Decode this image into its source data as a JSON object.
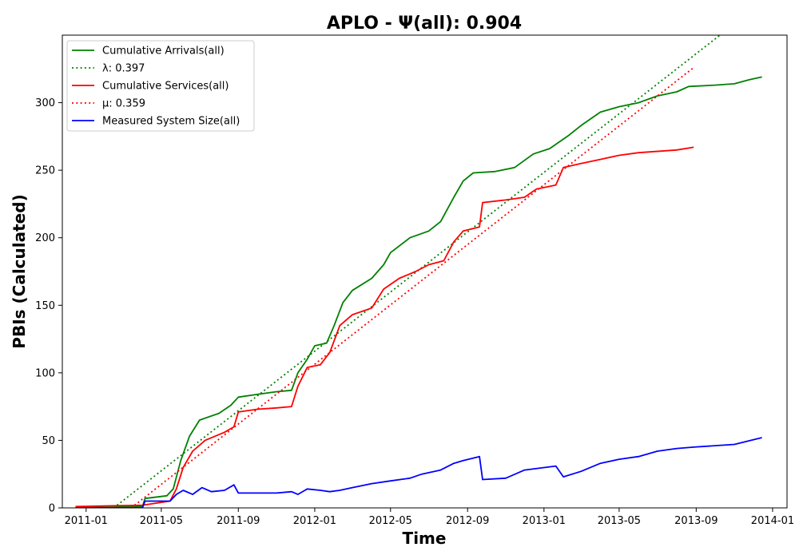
{
  "chart_data": {
    "type": "line",
    "title": "APLO -  Ψ(all): 0.904",
    "xlabel": "Time",
    "ylabel": "PBIs (Calculated)",
    "x_axis_type": "date",
    "xlim": [
      "2010-11-24",
      "2014-01-24"
    ],
    "ylim": [
      0,
      350
    ],
    "x_ticks": [
      "2011-01",
      "2011-05",
      "2011-09",
      "2012-01",
      "2012-05",
      "2012-09",
      "2013-01",
      "2013-05",
      "2013-09",
      "2014-01"
    ],
    "x_tick_dates": [
      "2011-01-01",
      "2011-05-01",
      "2011-09-01",
      "2012-01-01",
      "2012-05-01",
      "2012-09-01",
      "2013-01-01",
      "2013-05-01",
      "2013-09-01",
      "2014-01-01"
    ],
    "y_ticks": [
      0,
      50,
      100,
      150,
      200,
      250,
      300
    ],
    "grid": false,
    "legend_position": "top-left",
    "series": [
      {
        "name": "Cumulative Arrivals(all)",
        "color": "#008000",
        "style": "solid",
        "points": [
          [
            "2010-12-15",
            0
          ],
          [
            "2011-04-01",
            1
          ],
          [
            "2011-04-05",
            7
          ],
          [
            "2011-05-10",
            9
          ],
          [
            "2011-05-20",
            14
          ],
          [
            "2011-06-01",
            35
          ],
          [
            "2011-06-15",
            53
          ],
          [
            "2011-07-01",
            65
          ],
          [
            "2011-08-01",
            70
          ],
          [
            "2011-08-20",
            76
          ],
          [
            "2011-09-01",
            82
          ],
          [
            "2011-10-01",
            84
          ],
          [
            "2011-11-01",
            86
          ],
          [
            "2011-11-25",
            87
          ],
          [
            "2011-12-05",
            100
          ],
          [
            "2011-12-20",
            110
          ],
          [
            "2012-01-01",
            120
          ],
          [
            "2012-01-20",
            122
          ],
          [
            "2012-02-01",
            135
          ],
          [
            "2012-02-15",
            152
          ],
          [
            "2012-03-01",
            161
          ],
          [
            "2012-04-01",
            170
          ],
          [
            "2012-04-20",
            180
          ],
          [
            "2012-05-01",
            189
          ],
          [
            "2012-06-01",
            200
          ],
          [
            "2012-07-01",
            205
          ],
          [
            "2012-07-20",
            212
          ],
          [
            "2012-08-10",
            230
          ],
          [
            "2012-08-25",
            242
          ],
          [
            "2012-09-10",
            248
          ],
          [
            "2012-10-15",
            249
          ],
          [
            "2012-11-15",
            252
          ],
          [
            "2012-12-15",
            262
          ],
          [
            "2013-01-10",
            266
          ],
          [
            "2013-02-10",
            276
          ],
          [
            "2013-03-01",
            283
          ],
          [
            "2013-04-01",
            293
          ],
          [
            "2013-05-01",
            297
          ],
          [
            "2013-06-01",
            300
          ],
          [
            "2013-07-01",
            305
          ],
          [
            "2013-08-01",
            308
          ],
          [
            "2013-08-20",
            312
          ],
          [
            "2013-10-01",
            313
          ],
          [
            "2013-11-01",
            314
          ],
          [
            "2013-11-25",
            317
          ],
          [
            "2013-12-15",
            319
          ]
        ]
      },
      {
        "name": "λ: 0.397",
        "color": "#008000",
        "style": "dotted",
        "points": [
          [
            "2011-02-14",
            0
          ],
          [
            "2013-10-09",
            350
          ]
        ]
      },
      {
        "name": "Cumulative Services(all)",
        "color": "#ff0000",
        "style": "solid",
        "points": [
          [
            "2010-12-15",
            1
          ],
          [
            "2011-04-01",
            2
          ],
          [
            "2011-05-15",
            5
          ],
          [
            "2011-05-25",
            14
          ],
          [
            "2011-06-05",
            30
          ],
          [
            "2011-06-20",
            42
          ],
          [
            "2011-07-10",
            50
          ],
          [
            "2011-08-10",
            56
          ],
          [
            "2011-08-25",
            60
          ],
          [
            "2011-09-01",
            71
          ],
          [
            "2011-10-01",
            73
          ],
          [
            "2011-11-01",
            74
          ],
          [
            "2011-11-25",
            75
          ],
          [
            "2011-12-05",
            90
          ],
          [
            "2011-12-20",
            104
          ],
          [
            "2012-01-10",
            106
          ],
          [
            "2012-01-25",
            115
          ],
          [
            "2012-02-10",
            135
          ],
          [
            "2012-03-01",
            143
          ],
          [
            "2012-04-01",
            148
          ],
          [
            "2012-04-20",
            162
          ],
          [
            "2012-05-15",
            170
          ],
          [
            "2012-06-10",
            175
          ],
          [
            "2012-07-01",
            180
          ],
          [
            "2012-07-25",
            183
          ],
          [
            "2012-08-10",
            197
          ],
          [
            "2012-08-25",
            205
          ],
          [
            "2012-09-20",
            208
          ],
          [
            "2012-09-25",
            226
          ],
          [
            "2012-11-01",
            228
          ],
          [
            "2012-12-01",
            230
          ],
          [
            "2012-12-20",
            236
          ],
          [
            "2013-01-20",
            239
          ],
          [
            "2013-02-01",
            252
          ],
          [
            "2013-03-01",
            255
          ],
          [
            "2013-04-01",
            258
          ],
          [
            "2013-05-01",
            261
          ],
          [
            "2013-06-01",
            263
          ],
          [
            "2013-08-01",
            265
          ],
          [
            "2013-08-28",
            267
          ]
        ]
      },
      {
        "name": "μ: 0.359",
        "color": "#ff0000",
        "style": "dotted",
        "points": [
          [
            "2011-03-14",
            0
          ],
          [
            "2013-08-28",
            326
          ]
        ]
      },
      {
        "name": "Measured System Size(all)",
        "color": "#0000ff",
        "style": "solid",
        "points": [
          [
            "2010-12-15",
            0
          ],
          [
            "2011-04-01",
            0
          ],
          [
            "2011-04-05",
            5
          ],
          [
            "2011-05-15",
            5
          ],
          [
            "2011-05-25",
            10
          ],
          [
            "2011-06-05",
            13
          ],
          [
            "2011-06-20",
            10
          ],
          [
            "2011-07-05",
            15
          ],
          [
            "2011-07-20",
            12
          ],
          [
            "2011-08-10",
            13
          ],
          [
            "2011-08-25",
            17
          ],
          [
            "2011-09-01",
            11
          ],
          [
            "2011-10-01",
            11
          ],
          [
            "2011-11-01",
            11
          ],
          [
            "2011-11-25",
            12
          ],
          [
            "2011-12-05",
            10
          ],
          [
            "2011-12-20",
            14
          ],
          [
            "2012-01-10",
            13
          ],
          [
            "2012-01-25",
            12
          ],
          [
            "2012-02-10",
            13
          ],
          [
            "2012-03-01",
            15
          ],
          [
            "2012-04-01",
            18
          ],
          [
            "2012-05-01",
            20
          ],
          [
            "2012-06-01",
            22
          ],
          [
            "2012-06-20",
            25
          ],
          [
            "2012-07-20",
            28
          ],
          [
            "2012-08-10",
            33
          ],
          [
            "2012-08-25",
            35
          ],
          [
            "2012-09-20",
            38
          ],
          [
            "2012-09-25",
            21
          ],
          [
            "2012-11-01",
            22
          ],
          [
            "2012-12-01",
            28
          ],
          [
            "2013-01-20",
            31
          ],
          [
            "2013-02-01",
            23
          ],
          [
            "2013-03-01",
            27
          ],
          [
            "2013-04-01",
            33
          ],
          [
            "2013-05-01",
            36
          ],
          [
            "2013-06-01",
            38
          ],
          [
            "2013-07-01",
            42
          ],
          [
            "2013-08-01",
            44
          ],
          [
            "2013-08-28",
            45
          ],
          [
            "2013-11-01",
            47
          ],
          [
            "2013-12-15",
            52
          ]
        ]
      }
    ]
  }
}
